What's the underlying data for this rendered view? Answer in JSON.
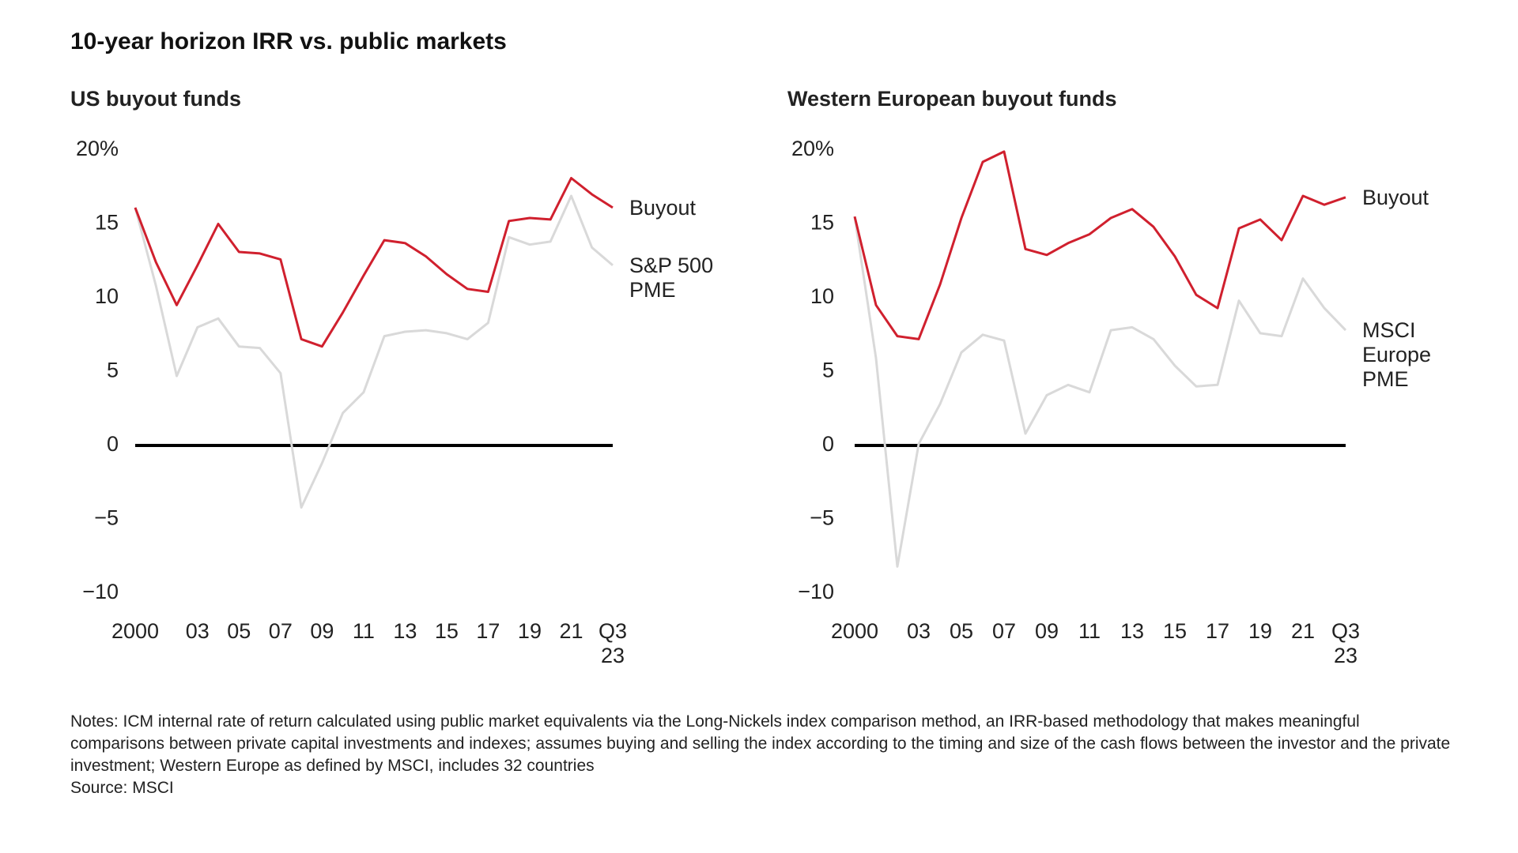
{
  "title": "10-year horizon IRR vs. public markets",
  "chart_data": [
    {
      "type": "line",
      "title": "US buyout funds",
      "categories": [
        "2000",
        null,
        null,
        "03",
        null,
        "05",
        null,
        "07",
        null,
        "09",
        null,
        "11",
        null,
        "13",
        null,
        "15",
        null,
        "17",
        null,
        "19",
        null,
        "21",
        null,
        "Q3\n23"
      ],
      "series": [
        {
          "name": "Buyout",
          "color": "#d0202e",
          "values": [
            16.1,
            12.4,
            9.5,
            12.2,
            15.0,
            13.1,
            13.0,
            12.6,
            7.2,
            6.7,
            9.0,
            11.5,
            13.9,
            13.7,
            12.8,
            11.6,
            10.6,
            10.4,
            15.2,
            15.4,
            15.3,
            18.1,
            17.0,
            16.1
          ]
        },
        {
          "name": "S&P 500\nPME",
          "color": "#d9d9d9",
          "values": [
            16.1,
            10.8,
            4.7,
            8.0,
            8.6,
            6.7,
            6.6,
            4.9,
            -4.2,
            -1.2,
            2.2,
            3.6,
            7.4,
            7.7,
            7.8,
            7.6,
            7.2,
            8.3,
            14.1,
            13.6,
            13.8,
            16.9,
            13.4,
            12.2
          ]
        }
      ],
      "ylim": [
        -10,
        20
      ],
      "yticks": [
        {
          "value": -10,
          "label": "−10"
        },
        {
          "value": -5,
          "label": "−5"
        },
        0,
        5,
        10,
        15,
        {
          "value": 20,
          "label": "20%"
        }
      ],
      "zero_line": true
    },
    {
      "type": "line",
      "title": "Western European buyout funds",
      "categories": [
        "2000",
        null,
        null,
        "03",
        null,
        "05",
        null,
        "07",
        null,
        "09",
        null,
        "11",
        null,
        "13",
        null,
        "15",
        null,
        "17",
        null,
        "19",
        null,
        "21",
        null,
        "Q3\n23"
      ],
      "series": [
        {
          "name": "Buyout",
          "color": "#d0202e",
          "values": [
            15.5,
            9.5,
            7.4,
            7.2,
            10.9,
            15.4,
            19.2,
            19.9,
            13.3,
            12.9,
            13.7,
            14.3,
            15.4,
            16.0,
            14.8,
            12.8,
            10.2,
            9.3,
            14.7,
            15.3,
            13.9,
            16.9,
            16.3,
            16.8
          ]
        },
        {
          "name": "MSCI\nEurope\nPME",
          "color": "#d9d9d9",
          "values": [
            15.5,
            5.9,
            -8.2,
            0.1,
            2.8,
            6.3,
            7.5,
            7.1,
            0.8,
            3.4,
            4.1,
            3.6,
            7.8,
            8.0,
            7.2,
            5.4,
            4.0,
            4.1,
            9.8,
            7.6,
            7.4,
            11.3,
            9.3,
            7.8
          ]
        }
      ],
      "ylim": [
        -10,
        20
      ],
      "yticks": [
        {
          "value": -10,
          "label": "−10"
        },
        {
          "value": -5,
          "label": "−5"
        },
        0,
        5,
        10,
        15,
        {
          "value": 20,
          "label": "20%"
        }
      ],
      "zero_line": true
    }
  ],
  "notes": "Notes: ICM internal rate of return calculated using public market equivalents via the Long-Nickels index comparison method, an IRR-based methodology that makes meaningful comparisons between private capital investments and indexes; assumes buying and selling the index according to the timing and size of the cash flows between the investor and the private investment; Western Europe as defined by MSCI, includes 32 countries",
  "source": "Source: MSCI"
}
